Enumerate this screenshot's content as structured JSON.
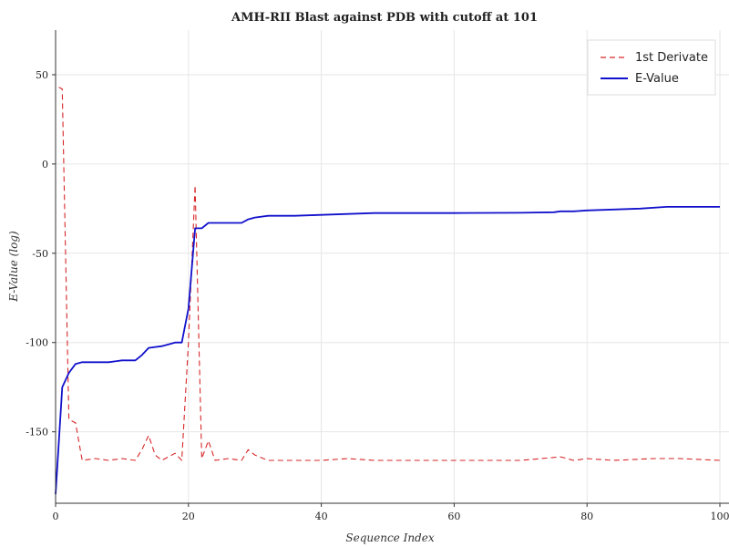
{
  "chart_data": {
    "type": "line",
    "title": "AMH-RII Blast against PDB with cutoff at 101",
    "xlabel": "Sequence Index",
    "ylabel": "E-Value (log)",
    "xlim": [
      0,
      100
    ],
    "ylim": [
      -190,
      75
    ],
    "xticks": [
      0,
      20,
      40,
      60,
      80,
      100
    ],
    "yticks": [
      50,
      0,
      -50,
      -100,
      -150
    ],
    "grid": true,
    "legend_position": "top-right",
    "series": [
      {
        "name": "1st Derivate",
        "color": "#d62728",
        "style": "dashed",
        "x": [
          0.5,
          1,
          2,
          3,
          4,
          6,
          8,
          10,
          12,
          13,
          14,
          15,
          16,
          17,
          18,
          19,
          20,
          21,
          22,
          23,
          24,
          26,
          28,
          29,
          30,
          32,
          36,
          40,
          44,
          48,
          52,
          60,
          70,
          76,
          78,
          80,
          84,
          90,
          94,
          100
        ],
        "y": [
          43,
          42,
          -143,
          -145,
          -166,
          -165,
          -166,
          -165,
          -166,
          -160,
          -152,
          -163,
          -166,
          -164,
          -162,
          -166,
          -100,
          -12,
          -165,
          -155,
          -166,
          -165,
          -166,
          -160,
          -163,
          -166,
          -166,
          -166,
          -165,
          -166,
          -166,
          -166,
          -166,
          -164,
          -166,
          -165,
          -166,
          -165,
          -165,
          -166
        ]
      },
      {
        "name": "E-Value",
        "color": "#1111cc",
        "style": "solid",
        "x": [
          0,
          1,
          2,
          3,
          4,
          6,
          8,
          10,
          12,
          13,
          14,
          16,
          18,
          19,
          20,
          21,
          22,
          23,
          24,
          26,
          28,
          29,
          30,
          32,
          36,
          40,
          44,
          48,
          52,
          60,
          70,
          75,
          76,
          78,
          80,
          84,
          88,
          92,
          96,
          100
        ],
        "y": [
          -185,
          -125,
          -117,
          -112,
          -111,
          -111,
          -111,
          -110,
          -110,
          -107,
          -103,
          -102,
          -100,
          -100,
          -81,
          -36,
          -36,
          -33,
          -33,
          -33,
          -33,
          -31,
          -30,
          -29,
          -29,
          -28.5,
          -28,
          -27.5,
          -27.5,
          -27.5,
          -27.3,
          -27,
          -26.5,
          -26.5,
          -26,
          -25.5,
          -25,
          -24,
          -24,
          -24
        ]
      }
    ]
  }
}
